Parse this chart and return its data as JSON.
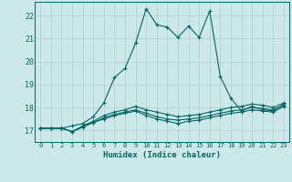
{
  "xlabel": "Humidex (Indice chaleur)",
  "background_color": "#cde8e8",
  "grid_color": "#b0cccc",
  "line_color": "#006666",
  "xlim": [
    -0.5,
    23.5
  ],
  "ylim": [
    16.5,
    22.6
  ],
  "xticks": [
    0,
    1,
    2,
    3,
    4,
    5,
    6,
    7,
    8,
    9,
    10,
    11,
    12,
    13,
    14,
    15,
    16,
    17,
    18,
    19,
    20,
    21,
    22,
    23
  ],
  "yticks": [
    17,
    18,
    19,
    20,
    21,
    22
  ],
  "curves": [
    [
      17.1,
      17.1,
      17.1,
      17.2,
      17.3,
      17.6,
      18.2,
      19.3,
      19.7,
      20.8,
      22.3,
      21.6,
      21.5,
      21.05,
      21.55,
      21.05,
      22.2,
      19.35,
      18.4,
      17.85,
      18.05,
      17.9,
      17.85,
      18.15
    ],
    [
      17.1,
      17.1,
      17.1,
      16.95,
      17.15,
      17.35,
      17.5,
      17.65,
      17.75,
      17.85,
      17.65,
      17.5,
      17.4,
      17.3,
      17.4,
      17.45,
      17.55,
      17.65,
      17.75,
      17.8,
      17.9,
      17.85,
      17.8,
      18.05
    ],
    [
      17.1,
      17.1,
      17.1,
      16.95,
      17.15,
      17.35,
      17.55,
      17.7,
      17.8,
      17.9,
      17.75,
      17.6,
      17.5,
      17.45,
      17.5,
      17.55,
      17.65,
      17.75,
      17.85,
      17.9,
      18.0,
      17.95,
      17.9,
      18.1
    ],
    [
      17.1,
      17.1,
      17.1,
      16.95,
      17.2,
      17.4,
      17.65,
      17.8,
      17.9,
      18.05,
      17.9,
      17.8,
      17.7,
      17.6,
      17.65,
      17.7,
      17.8,
      17.9,
      18.0,
      18.05,
      18.15,
      18.1,
      18.0,
      18.2
    ]
  ]
}
